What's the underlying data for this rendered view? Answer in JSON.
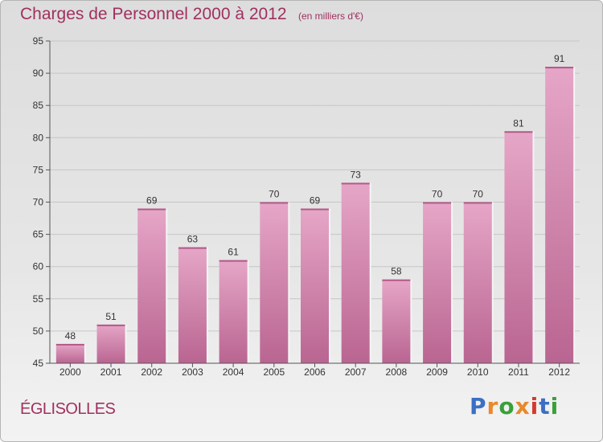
{
  "header": {
    "title": "Charges de Personnel 2000 à 2012",
    "subtitle": "(en milliers d'€)"
  },
  "footer": {
    "commune": "ÉGLISOLLES",
    "logo": [
      "P",
      "r",
      "o",
      "x",
      "i",
      "t",
      "i"
    ],
    "logo_colors": [
      "#3a6fc4",
      "#e8892b",
      "#3a9f3a",
      "#e8892b",
      "#d23a2e",
      "#3a6fc4",
      "#3a9f3a"
    ]
  },
  "colors": {
    "bar": "#c9679b",
    "bar_top": "#e8a6c6",
    "title": "#a0305f"
  },
  "chart_data": {
    "type": "bar",
    "title": "Charges de Personnel 2000 à 2012",
    "subtitle": "(en milliers d'€)",
    "categories": [
      "2000",
      "2001",
      "2002",
      "2003",
      "2004",
      "2005",
      "2006",
      "2007",
      "2008",
      "2009",
      "2010",
      "2011",
      "2012"
    ],
    "values": [
      48,
      51,
      69,
      63,
      61,
      70,
      69,
      73,
      58,
      70,
      70,
      81,
      91
    ],
    "ylim": [
      45,
      95
    ],
    "yticks": [
      45,
      50,
      55,
      60,
      65,
      70,
      75,
      80,
      85,
      90,
      95
    ],
    "grid": true,
    "data_labels": true
  }
}
